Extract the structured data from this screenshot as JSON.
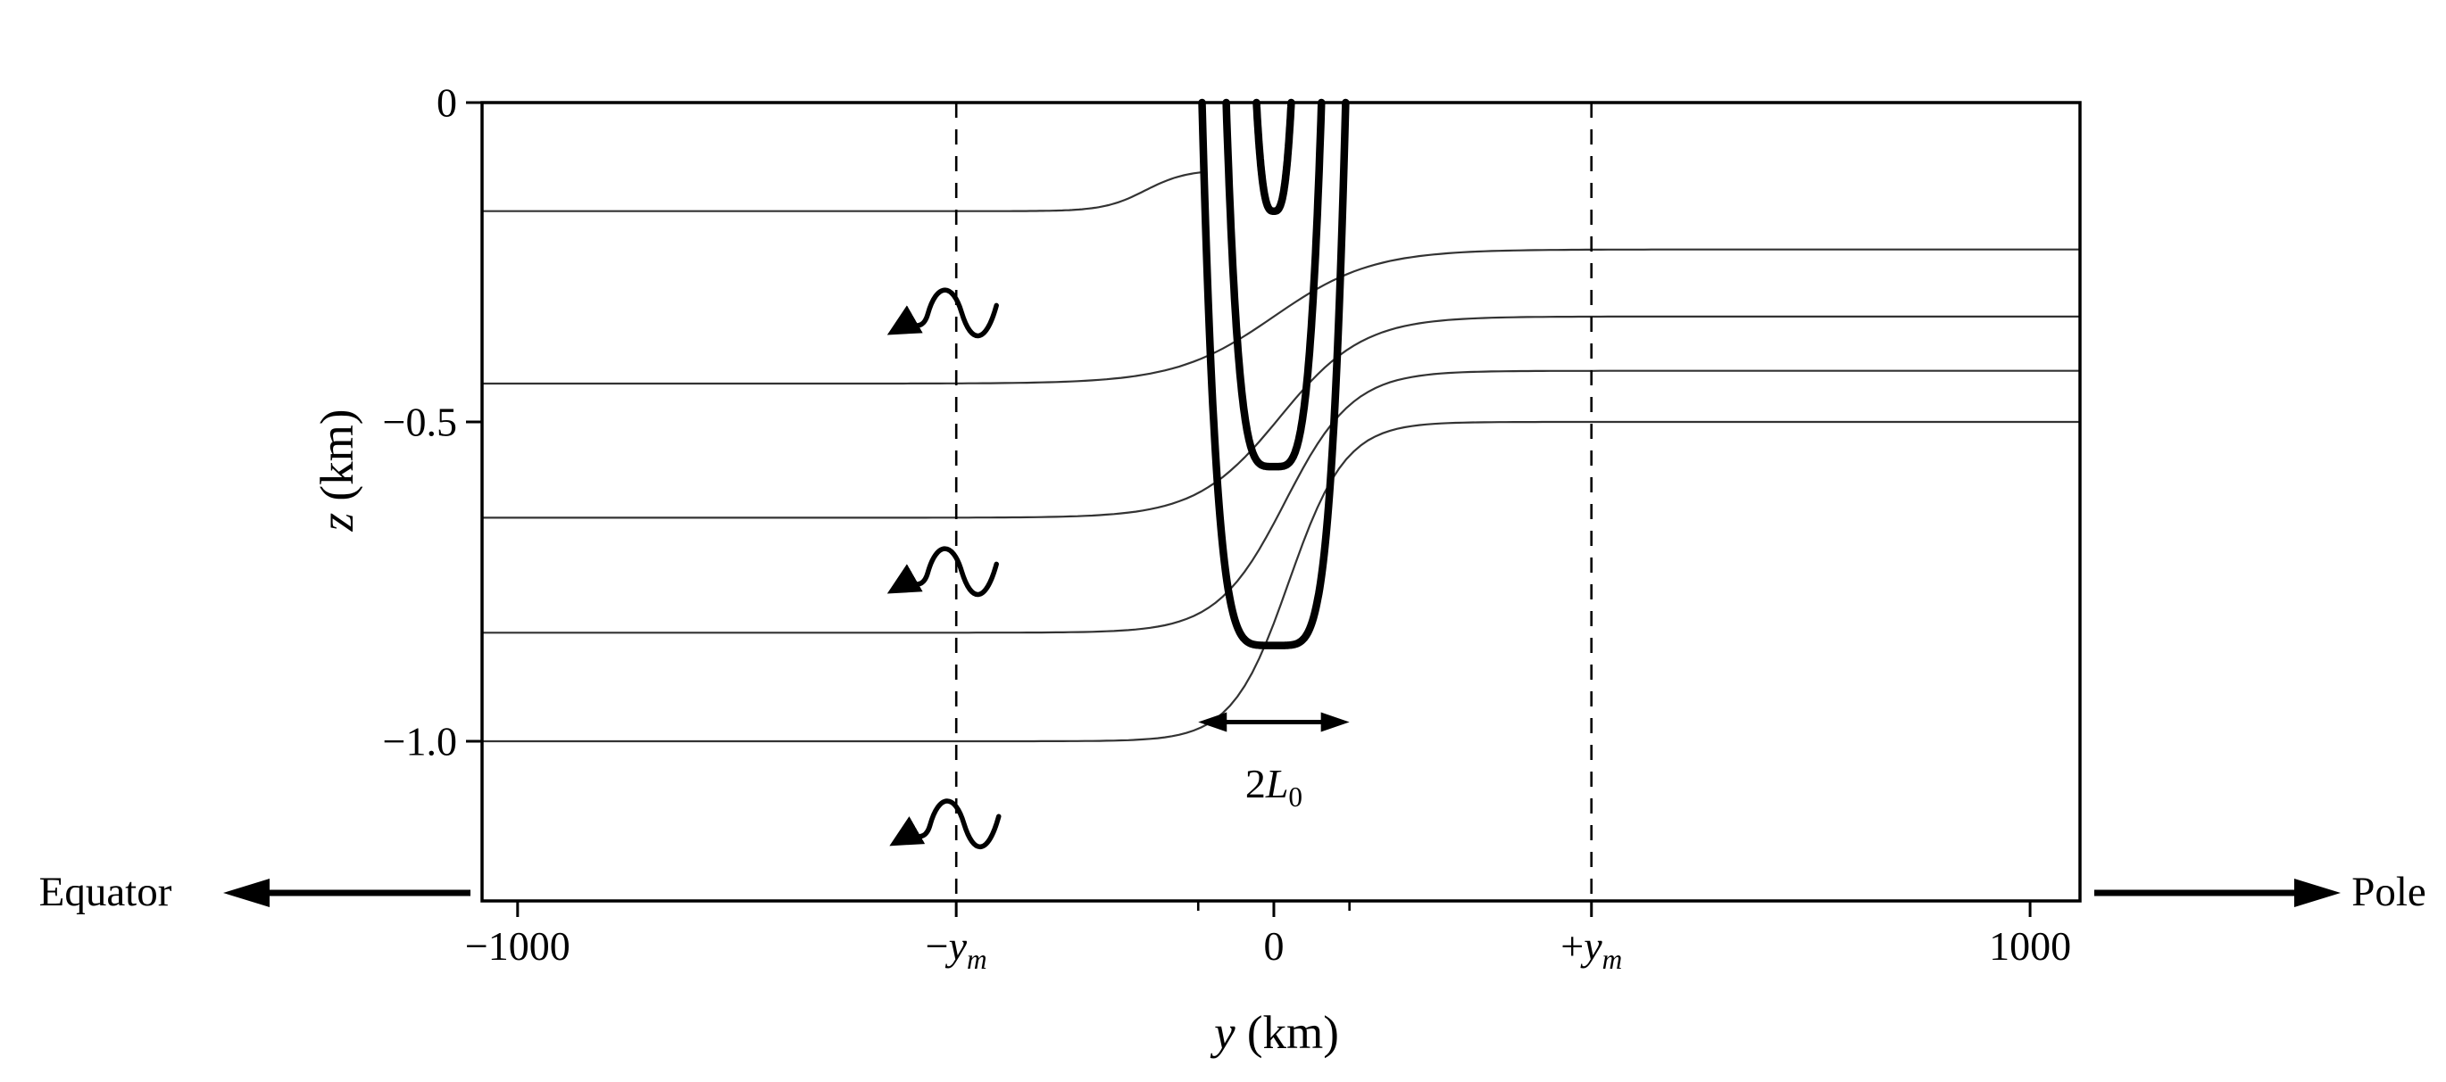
{
  "figure": {
    "left_direction_label": "Equator",
    "right_direction_label": "Pole"
  },
  "chart_data": {
    "type": "line",
    "title": "",
    "xlabel": {
      "var": "y",
      "rest": " (km)"
    },
    "ylabel": {
      "var": "z",
      "rest": " (km)"
    },
    "xlim": [
      -1047,
      1066
    ],
    "ylim": [
      -1.25,
      0
    ],
    "x_ticks": [
      {
        "v": -1000,
        "label": "−1000"
      },
      {
        "v": -420,
        "prefix": "−",
        "var": "y",
        "sub": "m"
      },
      {
        "v": 0,
        "label": "0"
      },
      {
        "v": 420,
        "prefix": "+",
        "var": "y",
        "sub": "m"
      },
      {
        "v": 1000,
        "label": "1000"
      }
    ],
    "x_minor_ticks": [
      -100,
      100
    ],
    "y_ticks": [
      {
        "v": 0,
        "label": "0"
      },
      {
        "v": -0.5,
        "label": "−0.5"
      },
      {
        "v": -1.0,
        "label": "−1.0"
      }
    ],
    "dashed_guides_x": [
      -420,
      420
    ],
    "thin_isopycnals": [
      {
        "z_left": -0.17,
        "z_right": -0.105,
        "center": -170,
        "scale": 55,
        "x_end": -93
      },
      {
        "z_left": -0.44,
        "z_right": -0.23,
        "center": 0,
        "scale": 130
      },
      {
        "z_left": -0.65,
        "z_right": -0.335,
        "center": 8,
        "scale": 110
      },
      {
        "z_left": -0.83,
        "z_right": -0.42,
        "center": 15,
        "scale": 90
      },
      {
        "z_left": -1.0,
        "z_right": -0.5,
        "center": 20,
        "scale": 75
      }
    ],
    "outcropping_isopycnals": [
      {
        "half_width": 23,
        "depth": 0.17,
        "exponent": 3
      },
      {
        "half_width": 63,
        "depth": 0.57,
        "exponent": 4
      },
      {
        "half_width": 95,
        "depth": 0.85,
        "exponent": 5
      }
    ],
    "width_annotation": {
      "prefix": "2",
      "var": "L",
      "sub": "0",
      "x_from": -100,
      "x_to": 100,
      "z": -0.97,
      "label_z": -1.03
    },
    "eddy_arrows": [
      {
        "y": -440,
        "z": -0.34
      },
      {
        "y": -440,
        "z": -0.745
      },
      {
        "y": -437,
        "z": -1.14
      }
    ],
    "grid": false,
    "legend": false,
    "colors": {
      "line": "#000000",
      "thin_line": "#333333",
      "background": "#ffffff"
    }
  }
}
